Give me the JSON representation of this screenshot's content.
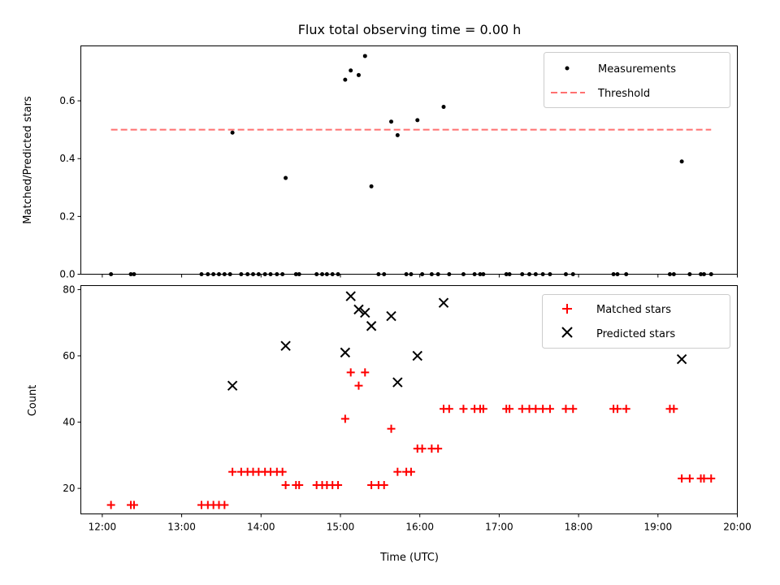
{
  "title": "Flux total observing time = 0.00 h",
  "chart_data": [
    {
      "type": "scatter",
      "ylabel": "Matched/Predicted stars",
      "xlim": [
        11.73,
        20.0
      ],
      "ylim": [
        0.0,
        0.79
      ],
      "yticks": [
        0.0,
        0.2,
        0.4,
        0.6
      ],
      "ytick_labels": [
        "0.0",
        "0.2",
        "0.4",
        "0.6"
      ],
      "legend": {
        "placement": "top-right",
        "items": [
          "Measurements",
          "Threshold"
        ]
      },
      "threshold": {
        "y": 0.5,
        "x_start": 12.11,
        "x_end": 19.67,
        "color": "#ff7070"
      },
      "series": [
        {
          "name": "Measurements",
          "color": "#000000",
          "x": [
            12.11,
            12.36,
            12.4,
            13.25,
            13.33,
            13.4,
            13.47,
            13.54,
            13.61,
            13.64,
            13.75,
            13.83,
            13.9,
            13.97,
            14.05,
            14.12,
            14.2,
            14.27,
            14.31,
            14.44,
            14.48,
            14.7,
            14.77,
            14.83,
            14.9,
            14.97,
            15.06,
            15.13,
            15.23,
            15.31,
            15.39,
            15.48,
            15.55,
            15.64,
            15.72,
            15.83,
            15.89,
            15.97,
            16.03,
            16.15,
            16.23,
            16.3,
            16.37,
            16.55,
            16.69,
            16.76,
            16.8,
            17.09,
            17.13,
            17.29,
            17.38,
            17.46,
            17.55,
            17.64,
            17.84,
            17.93,
            18.44,
            18.49,
            18.6,
            19.15,
            19.2,
            19.3,
            19.4,
            19.54,
            19.58,
            19.67
          ],
          "y": [
            0,
            0,
            0,
            0,
            0,
            0,
            0,
            0,
            0,
            0.49,
            0,
            0,
            0,
            0,
            0,
            0,
            0,
            0,
            0.333,
            0,
            0,
            0,
            0,
            0,
            0,
            0,
            0.673,
            0.705,
            0.689,
            0.755,
            0.304,
            0,
            0,
            0.528,
            0.481,
            0,
            0,
            0.533,
            0,
            0,
            0,
            0.579,
            0,
            0,
            0,
            0,
            0,
            0,
            0,
            0,
            0,
            0,
            0,
            0,
            0,
            0,
            0,
            0,
            0,
            0,
            0,
            0.39,
            0,
            0,
            0,
            0
          ]
        }
      ]
    },
    {
      "type": "scatter",
      "xlabel": "Time (UTC)",
      "ylabel": "Count",
      "xlim": [
        11.73,
        20.0
      ],
      "ylim": [
        12.3,
        81.2
      ],
      "xticks": [
        12,
        13,
        14,
        15,
        16,
        17,
        18,
        19,
        20
      ],
      "xtick_labels": [
        "12:00",
        "13:00",
        "14:00",
        "15:00",
        "16:00",
        "17:00",
        "18:00",
        "19:00",
        "20:00"
      ],
      "yticks": [
        20,
        40,
        60,
        80
      ],
      "ytick_labels": [
        "20",
        "40",
        "60",
        "80"
      ],
      "legend": {
        "placement": "top-right",
        "items": [
          "Matched stars",
          "Predicted stars"
        ]
      },
      "series": [
        {
          "name": "Matched stars",
          "marker": "plus",
          "color": "#ff0000",
          "x": [
            12.11,
            12.36,
            12.4,
            13.25,
            13.33,
            13.4,
            13.47,
            13.54,
            13.64,
            13.75,
            13.83,
            13.9,
            13.97,
            14.05,
            14.12,
            14.2,
            14.27,
            14.31,
            14.44,
            14.48,
            14.7,
            14.77,
            14.83,
            14.9,
            14.97,
            15.06,
            15.13,
            15.23,
            15.31,
            15.39,
            15.48,
            15.55,
            15.64,
            15.72,
            15.83,
            15.89,
            15.97,
            16.03,
            16.15,
            16.23,
            16.3,
            16.37,
            16.55,
            16.69,
            16.76,
            16.8,
            17.09,
            17.13,
            17.29,
            17.38,
            17.46,
            17.55,
            17.64,
            17.84,
            17.93,
            18.44,
            18.49,
            18.6,
            19.15,
            19.2,
            19.3,
            19.4,
            19.54,
            19.58,
            19.67
          ],
          "y": [
            15,
            15,
            15,
            15,
            15,
            15,
            15,
            15,
            25,
            25,
            25,
            25,
            25,
            25,
            25,
            25,
            25,
            21,
            21,
            21,
            21,
            21,
            21,
            21,
            21,
            41,
            55,
            51,
            55,
            21,
            21,
            21,
            38,
            25,
            25,
            25,
            32,
            32,
            32,
            32,
            44,
            44,
            44,
            44,
            44,
            44,
            44,
            44,
            44,
            44,
            44,
            44,
            44,
            44,
            44,
            44,
            44,
            44,
            44,
            44,
            23,
            23,
            23,
            23,
            23
          ]
        },
        {
          "name": "Predicted stars",
          "marker": "x",
          "color": "#000000",
          "x": [
            13.64,
            14.31,
            15.06,
            15.13,
            15.23,
            15.31,
            15.39,
            15.64,
            15.72,
            15.97,
            16.3,
            19.3
          ],
          "y": [
            51,
            63,
            61,
            78,
            74,
            73,
            69,
            72,
            52,
            60,
            76,
            59
          ]
        }
      ]
    }
  ]
}
